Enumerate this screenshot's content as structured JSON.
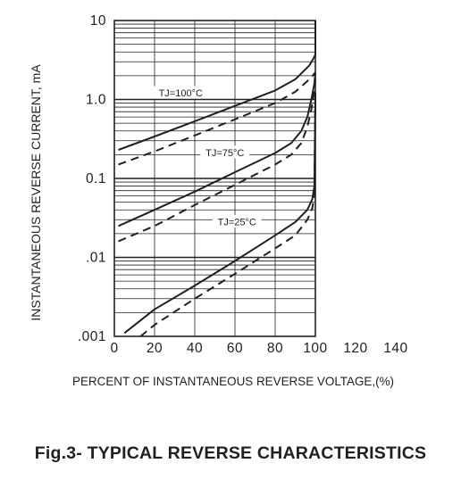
{
  "figure": {
    "caption": "Fig.3- TYPICAL REVERSE CHARACTERISTICS"
  },
  "chart_data": {
    "type": "line",
    "title": "Fig.3- TYPICAL REVERSE CHARACTERISTICS",
    "xlabel": "PERCENT OF INSTANTANEOUS REVERSE VOLTAGE,(%)",
    "ylabel": "INSTANTANEOUS REVERSE CURRENT, mA",
    "x_scale": "linear",
    "y_scale": "log",
    "xlim": [
      0,
      140
    ],
    "ylim": [
      0.001,
      10
    ],
    "x_ticks": [
      0,
      20,
      40,
      60,
      80,
      100,
      120,
      140
    ],
    "x_tick_labels": [
      "0",
      "20",
      "40",
      "60",
      "80",
      "100",
      "120",
      "140"
    ],
    "y_ticks": [
      0.001,
      0.01,
      0.1,
      1,
      10
    ],
    "y_tick_labels": [
      ".001",
      ".01",
      "0.1",
      "1.0",
      "10"
    ],
    "grid": true,
    "line_color": "#231f20",
    "annotations": [
      {
        "text": "TJ=100°C",
        "x": 33,
        "y": 1.2
      },
      {
        "text": "TJ=75°C",
        "x": 55,
        "y": 0.21
      },
      {
        "text": "TJ=25°C",
        "x": 61,
        "y": 0.028
      }
    ],
    "series": [
      {
        "group": "TJ=100°C",
        "style": "solid",
        "x": [
          2,
          20,
          40,
          60,
          80,
          90,
          97,
          99,
          100,
          100
        ],
        "y": [
          0.23,
          0.34,
          0.53,
          0.83,
          1.3,
          1.8,
          2.7,
          3.3,
          3.7,
          10
        ]
      },
      {
        "group": "TJ=100°C",
        "style": "dashed",
        "x": [
          2,
          20,
          40,
          60,
          80,
          90,
          97,
          100
        ],
        "y": [
          0.15,
          0.22,
          0.35,
          0.56,
          0.9,
          1.25,
          1.8,
          2.2
        ]
      },
      {
        "group": "TJ=75°C",
        "style": "solid",
        "x": [
          2,
          20,
          40,
          60,
          80,
          88,
          93,
          96,
          98,
          99.5,
          100
        ],
        "y": [
          0.025,
          0.04,
          0.068,
          0.12,
          0.21,
          0.28,
          0.4,
          0.6,
          1.0,
          1.6,
          2.2
        ]
      },
      {
        "group": "TJ=75°C",
        "style": "dashed",
        "x": [
          2,
          20,
          40,
          60,
          80,
          88,
          93,
          96,
          98,
          99.5,
          100
        ],
        "y": [
          0.016,
          0.025,
          0.046,
          0.083,
          0.15,
          0.2,
          0.28,
          0.45,
          0.75,
          1.3,
          1.8
        ]
      },
      {
        "group": "TJ=25°C",
        "style": "solid",
        "x": [
          5,
          20,
          40,
          60,
          80,
          90,
          96,
          98.5,
          99.5,
          100
        ],
        "y": [
          0.0011,
          0.0022,
          0.0044,
          0.009,
          0.019,
          0.028,
          0.04,
          0.055,
          0.08,
          1.2
        ]
      },
      {
        "group": "TJ=25°C",
        "style": "dashed",
        "x": [
          13,
          20,
          40,
          60,
          80,
          90,
          96,
          98.5,
          99.5,
          100
        ],
        "y": [
          0.001,
          0.0014,
          0.003,
          0.0062,
          0.013,
          0.019,
          0.03,
          0.042,
          0.065,
          1.1
        ]
      }
    ]
  }
}
